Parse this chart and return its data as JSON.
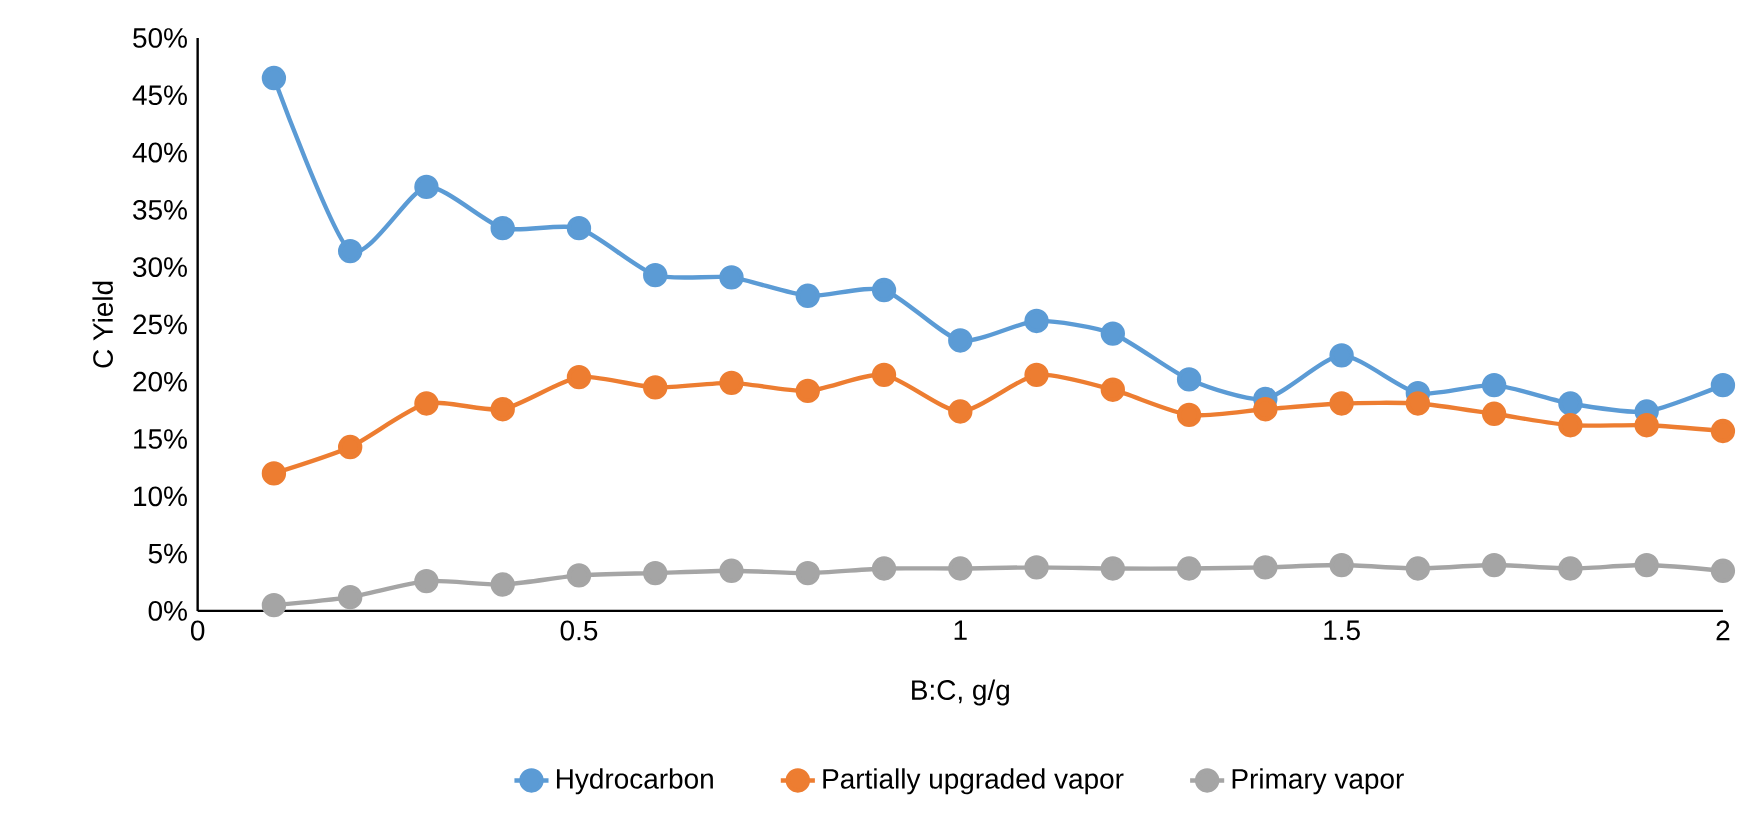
{
  "chart_data": {
    "type": "line",
    "xlabel": "B:C, g/g",
    "ylabel": "C Yield",
    "x": [
      0.1,
      0.2,
      0.3,
      0.4,
      0.5,
      0.6,
      0.7,
      0.8,
      0.9,
      1.0,
      1.1,
      1.2,
      1.3,
      1.4,
      1.5,
      1.6,
      1.7,
      1.8,
      1.9,
      2.0
    ],
    "series": [
      {
        "name": "Hydrocarbon",
        "color": "#5b9bd5",
        "values": [
          46.5,
          31.4,
          37,
          33.4,
          33.4,
          29.3,
          29.1,
          27.5,
          28,
          23.6,
          25.3,
          24.2,
          20.2,
          18.5,
          22.3,
          19,
          19.7,
          18.1,
          17.4,
          19.7
        ]
      },
      {
        "name": "Partially upgraded vapor",
        "color": "#ed7d31",
        "values": [
          12,
          14.3,
          18.1,
          17.6,
          20.4,
          19.5,
          19.9,
          19.2,
          20.6,
          17.4,
          20.6,
          19.3,
          17.1,
          17.6,
          18.1,
          18.1,
          17.2,
          16.2,
          16.2,
          15.7
        ]
      },
      {
        "name": "Primary vapor",
        "color": "#a5a5a5",
        "values": [
          0.5,
          1.2,
          2.6,
          2.3,
          3.1,
          3.3,
          3.5,
          3.3,
          3.7,
          3.7,
          3.8,
          3.7,
          3.7,
          3.8,
          4.0,
          3.7,
          4.0,
          3.7,
          4.0,
          3.5
        ]
      }
    ],
    "xlim": [
      0,
      2
    ],
    "xticks": [
      0,
      0.5,
      1,
      1.5,
      2
    ],
    "ylim": [
      0,
      50
    ],
    "yticks": [
      {
        "value": 0,
        "label": "0%"
      },
      {
        "value": 5,
        "label": "5%"
      },
      {
        "value": 10,
        "label": "10%"
      },
      {
        "value": 15,
        "label": "15%"
      },
      {
        "value": 20,
        "label": "20%"
      },
      {
        "value": 25,
        "label": "25%"
      },
      {
        "value": 30,
        "label": "30%"
      },
      {
        "value": 35,
        "label": "35%"
      },
      {
        "value": 40,
        "label": "40%"
      },
      {
        "value": 45,
        "label": "45%"
      },
      {
        "value": 50,
        "label": "50%"
      }
    ],
    "grid": false,
    "legend": "bottom",
    "marker": "circle",
    "line_style": "solid"
  }
}
